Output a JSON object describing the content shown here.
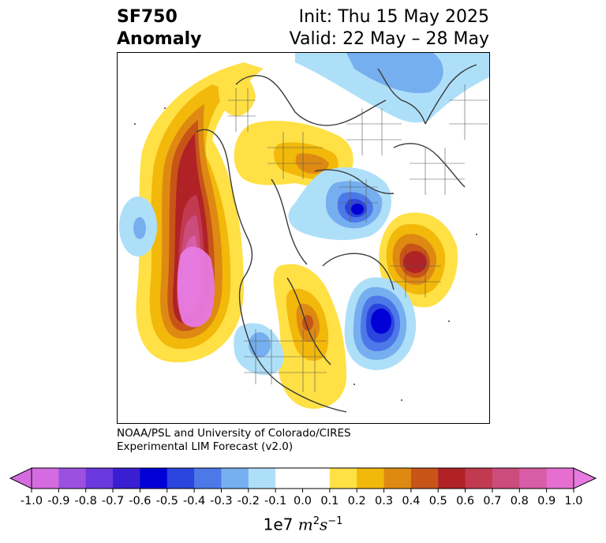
{
  "title": {
    "left_line1": "SF750",
    "left_line2": "Anomaly",
    "right_line1": "Init: Thu 15 May 2025",
    "right_line2": "Valid: 22 May – 28 May"
  },
  "credit": {
    "line1": "NOAA/PSL and University of Colorado/CIRES",
    "line2": "Experimental LIM Forecast (v2.0)"
  },
  "colorbar": {
    "levels": [
      {
        "label": "-1.0",
        "color": "#d46be0"
      },
      {
        "label": "-0.9",
        "color": "#9b50e0"
      },
      {
        "label": "-0.8",
        "color": "#6a38dc"
      },
      {
        "label": "-0.7",
        "color": "#3a1fd2"
      },
      {
        "label": "-0.6",
        "color": "#0000d6"
      },
      {
        "label": "-0.5",
        "color": "#2a45dd"
      },
      {
        "label": "-0.4",
        "color": "#4d78e8"
      },
      {
        "label": "-0.3",
        "color": "#76afef"
      },
      {
        "label": "-0.2",
        "color": "#aedff9"
      },
      {
        "label": "-0.1",
        "color": "#ffffff"
      },
      {
        "label": "0.0",
        "color": "#ffffff"
      },
      {
        "label": "0.1",
        "color": "#ffe045"
      },
      {
        "label": "0.2",
        "color": "#f2b80a"
      },
      {
        "label": "0.3",
        "color": "#de8a12"
      },
      {
        "label": "0.4",
        "color": "#c85418"
      },
      {
        "label": "0.5",
        "color": "#b02226"
      },
      {
        "label": "0.6",
        "color": "#c13a50"
      },
      {
        "label": "0.7",
        "color": "#cc4c7c"
      },
      {
        "label": "0.8",
        "color": "#d85ca6"
      },
      {
        "label": "0.9",
        "color": "#e56ed0"
      },
      {
        "label": "1.0",
        "color": ""
      }
    ],
    "extend_low_color": "#d46be0",
    "extend_high_color": "#e77be0",
    "units_prefix": "1e7",
    "units_main": "m",
    "units_exp1": "2",
    "units_mid": "s",
    "units_exp2": "−1"
  },
  "map": {
    "anomalies": [
      {
        "name": "pacific-positive",
        "sign": "positive",
        "peak_level": "1.0"
      },
      {
        "name": "pacific-small-negative",
        "sign": "negative",
        "peak_level": "-0.3"
      },
      {
        "name": "arctic-siberia-negative",
        "sign": "negative",
        "peak_level": "-0.6"
      },
      {
        "name": "siberia-europe-positive",
        "sign": "positive",
        "peak_level": "0.4"
      },
      {
        "name": "europe-positive",
        "sign": "positive",
        "peak_level": "0.6"
      },
      {
        "name": "atlantic-negative",
        "sign": "negative",
        "peak_level": "-0.6"
      },
      {
        "name": "eastern-na-positive",
        "sign": "positive",
        "peak_level": "0.4"
      },
      {
        "name": "western-na-negative",
        "sign": "negative",
        "peak_level": "-0.3"
      },
      {
        "name": "arctic-top-negative",
        "sign": "negative",
        "peak_level": "-0.3"
      }
    ]
  }
}
